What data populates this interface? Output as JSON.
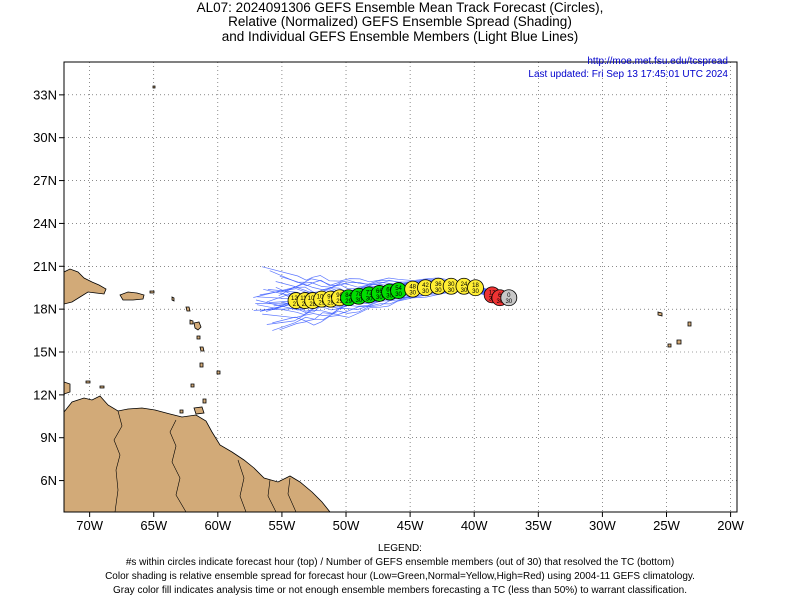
{
  "title": {
    "line1": "AL07: 2024091306 GEFS Ensemble Mean Track Forecast (Circles),",
    "line2": "Relative (Normalized) GEFS Ensemble Spread (Shading)",
    "line3": "and Individual GEFS Ensemble Members (Light Blue Lines)"
  },
  "info": {
    "url": "http://moe.met.fsu.edu/tcspread",
    "updated": "Last updated: Fri Sep 13 17:45:01 UTC 2024"
  },
  "axes": {
    "y_ticks": [
      {
        "label": "33N",
        "value": 33
      },
      {
        "label": "30N",
        "value": 30
      },
      {
        "label": "27N",
        "value": 27
      },
      {
        "label": "24N",
        "value": 24
      },
      {
        "label": "21N",
        "value": 21
      },
      {
        "label": "18N",
        "value": 18
      },
      {
        "label": "15N",
        "value": 15
      },
      {
        "label": "12N",
        "value": 12
      },
      {
        "label": "9N",
        "value": 9
      },
      {
        "label": "6N",
        "value": 6
      }
    ],
    "x_ticks": [
      {
        "label": "70W",
        "value": -70
      },
      {
        "label": "65W",
        "value": -65
      },
      {
        "label": "60W",
        "value": -60
      },
      {
        "label": "55W",
        "value": -55
      },
      {
        "label": "50W",
        "value": -50
      },
      {
        "label": "45W",
        "value": -45
      },
      {
        "label": "40W",
        "value": -40
      },
      {
        "label": "35W",
        "value": -35
      },
      {
        "label": "30W",
        "value": -30
      },
      {
        "label": "25W",
        "value": -25
      },
      {
        "label": "20W",
        "value": -20
      }
    ],
    "lon_range": [
      -72,
      -19.5
    ],
    "lat_range": [
      3.8,
      35.3
    ],
    "grid": "dotted"
  },
  "colors": {
    "land": "#d2aa78",
    "member_tracks": "#3f5fff",
    "green": "#00dd00",
    "yellow": "#ffee33",
    "red": "#ee3333",
    "gray": "#c8c8c8"
  },
  "chart_data": {
    "type": "scatter",
    "track_points": [
      {
        "lon": -37.3,
        "lat": 18.8,
        "hour": "0",
        "members": "30",
        "color": "gray"
      },
      {
        "lon": -38.0,
        "lat": 18.8,
        "hour": "6",
        "members": "30",
        "color": "red"
      },
      {
        "lon": -38.6,
        "lat": 19.0,
        "hour": "12",
        "members": "30",
        "color": "red"
      },
      {
        "lon": -39.9,
        "lat": 19.5,
        "hour": "18",
        "members": "30",
        "color": "yellow"
      },
      {
        "lon": -40.8,
        "lat": 19.6,
        "hour": "24",
        "members": "30",
        "color": "yellow"
      },
      {
        "lon": -41.8,
        "lat": 19.6,
        "hour": "30",
        "members": "30",
        "color": "yellow"
      },
      {
        "lon": -42.8,
        "lat": 19.6,
        "hour": "36",
        "members": "30",
        "color": "yellow"
      },
      {
        "lon": -43.8,
        "lat": 19.5,
        "hour": "42",
        "members": "30",
        "color": "yellow"
      },
      {
        "lon": -44.8,
        "lat": 19.4,
        "hour": "48",
        "members": "30",
        "color": "yellow"
      },
      {
        "lon": -45.9,
        "lat": 19.3,
        "hour": "54",
        "members": "30",
        "color": "green"
      },
      {
        "lon": -46.6,
        "lat": 19.2,
        "hour": "60",
        "members": "30",
        "color": "green"
      },
      {
        "lon": -47.4,
        "lat": 19.1,
        "hour": "66",
        "members": "30",
        "color": "green"
      },
      {
        "lon": -48.2,
        "lat": 19.0,
        "hour": "72",
        "members": "30",
        "color": "green"
      },
      {
        "lon": -49.0,
        "lat": 18.9,
        "hour": "78",
        "members": "30",
        "color": "green"
      },
      {
        "lon": -49.8,
        "lat": 18.8,
        "hour": "84",
        "members": "29",
        "color": "green"
      },
      {
        "lon": -50.5,
        "lat": 18.8,
        "hour": "90",
        "members": "29",
        "color": "yellow"
      },
      {
        "lon": -51.2,
        "lat": 18.7,
        "hour": "96",
        "members": "29",
        "color": "yellow"
      },
      {
        "lon": -51.9,
        "lat": 18.7,
        "hour": "102",
        "members": "29",
        "color": "yellow"
      },
      {
        "lon": -52.6,
        "lat": 18.6,
        "hour": "108",
        "members": "28",
        "color": "yellow"
      },
      {
        "lon": -53.2,
        "lat": 18.6,
        "hour": "114",
        "members": "28",
        "color": "yellow"
      },
      {
        "lon": -53.9,
        "lat": 18.6,
        "hour": "120",
        "members": "27",
        "color": "yellow"
      }
    ]
  },
  "legend": {
    "heading": "LEGEND:",
    "line1": "#s within circles indicate forecast hour (top) / Number of GEFS ensemble members (out of 30) that resolved the TC (bottom)",
    "line2": "Color shading is relative ensemble spread for forecast hour (Low=Green,Normal=Yellow,High=Red) using 2004-11 GEFS climatology.",
    "line3": "Gray color fill indicates analysis time or not enough ensemble members forecasting a TC (less than 50%) to warrant classification."
  }
}
